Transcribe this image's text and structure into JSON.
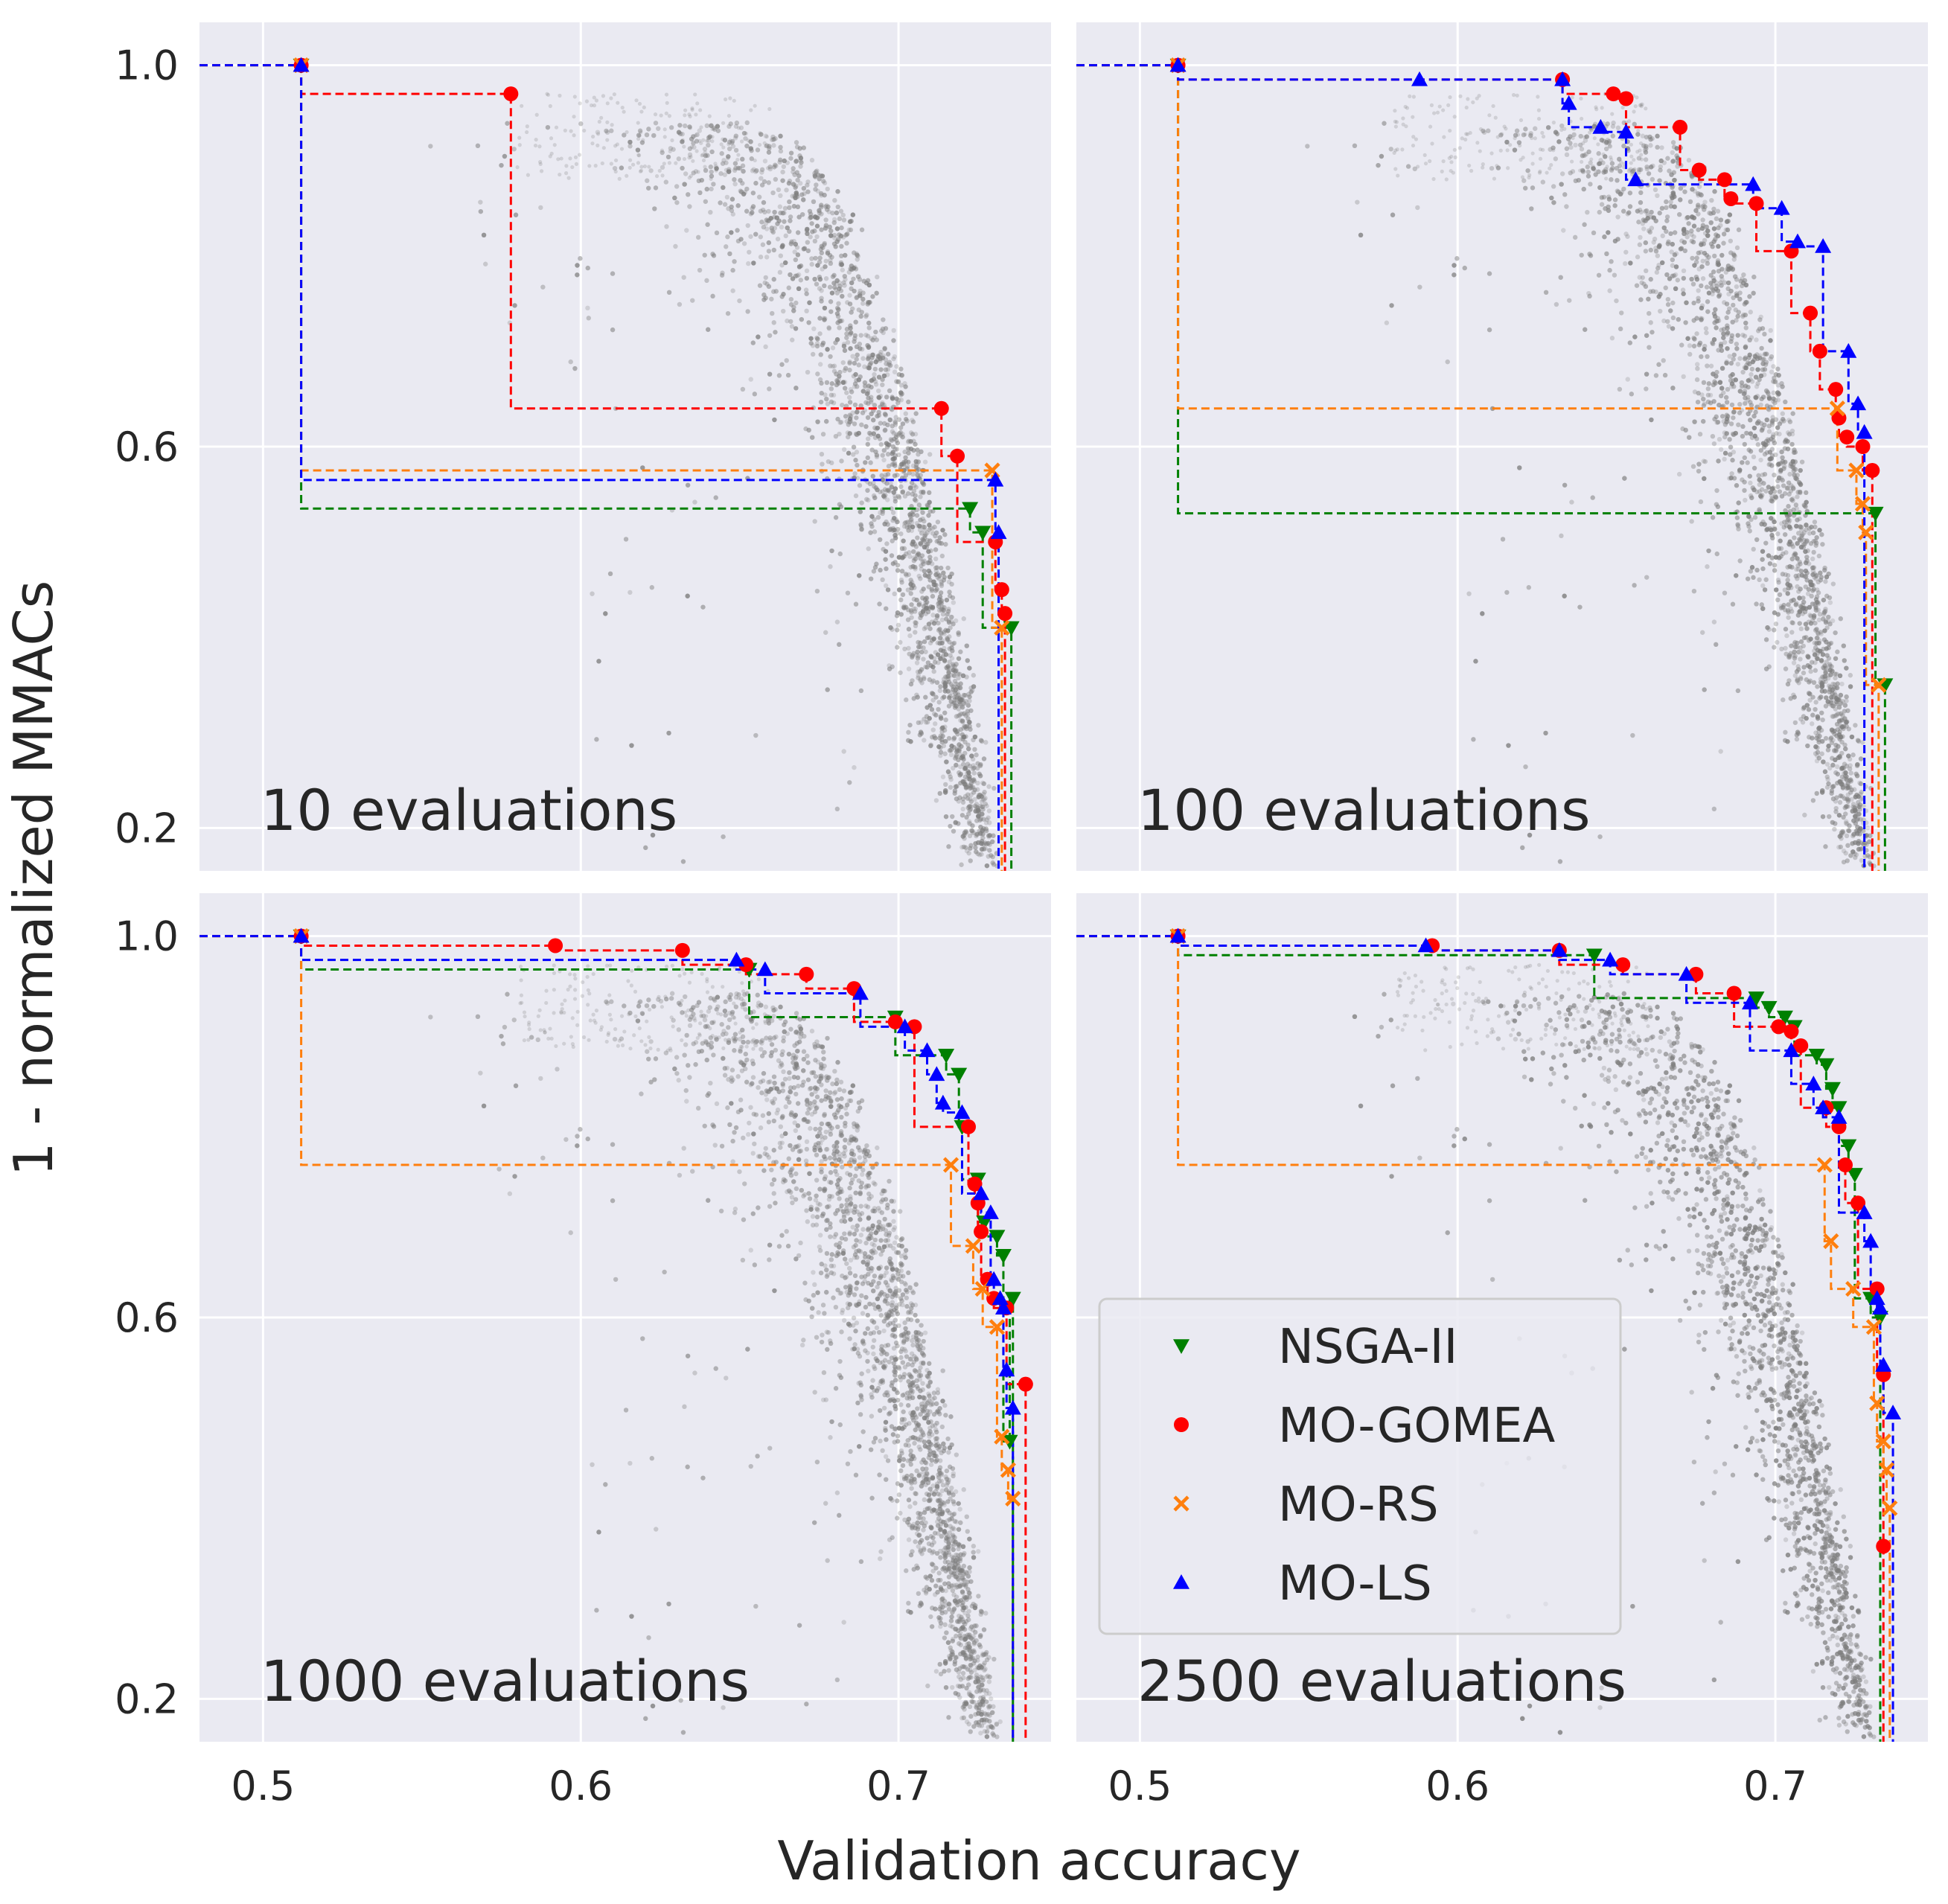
{
  "chart_data": {
    "type": "scatter",
    "layout": "2x2 small multiples, shared axes",
    "xlabel": "Validation accuracy",
    "ylabel": "1 - normalized MMACs",
    "xlim": [
      0.48,
      0.748
    ],
    "ylim": [
      0.155,
      1.045
    ],
    "xticks": [
      0.5,
      0.6,
      0.7
    ],
    "yticks": [
      0.2,
      0.6,
      1.0
    ],
    "xtick_labels": [
      "0.5",
      "0.6",
      "0.7"
    ],
    "ytick_labels": [
      "0.2",
      "0.6",
      "1.0"
    ],
    "grid": true,
    "background": "#eaeaf2",
    "legend": {
      "placement": "bottom-right panel, lower-left",
      "entries": [
        {
          "label": "NSGA-II",
          "color": "#008000",
          "marker": "triangle-down"
        },
        {
          "label": "MO-GOMEA",
          "color": "#ff0000",
          "marker": "circle"
        },
        {
          "label": "MO-RS",
          "color": "#ff7f0e",
          "marker": "x"
        },
        {
          "label": "MO-LS",
          "color": "#0000ff",
          "marker": "triangle-up"
        }
      ]
    },
    "panels": [
      {
        "title": "10 evaluations",
        "series": [
          {
            "name": "NSGA-II",
            "color": "#008000",
            "marker": "triangle-down",
            "points": [
              [
                0.512,
                1.0
              ],
              [
                0.7225,
                0.535
              ],
              [
                0.7265,
                0.51
              ],
              [
                0.7355,
                0.41
              ]
            ]
          },
          {
            "name": "MO-GOMEA",
            "color": "#ff0000",
            "marker": "circle",
            "points": [
              [
                0.512,
                1.0
              ],
              [
                0.578,
                0.97
              ],
              [
                0.7135,
                0.64
              ],
              [
                0.7185,
                0.59
              ],
              [
                0.7305,
                0.5
              ],
              [
                0.7325,
                0.45
              ],
              [
                0.7335,
                0.425
              ]
            ]
          },
          {
            "name": "MO-RS",
            "color": "#ff7f0e",
            "marker": "x",
            "points": [
              [
                0.512,
                1.0
              ],
              [
                0.7295,
                0.575
              ],
              [
                0.7325,
                0.41
              ]
            ]
          },
          {
            "name": "MO-LS",
            "color": "#0000ff",
            "marker": "triangle-up",
            "points": [
              [
                0.512,
                1.0
              ],
              [
                0.7305,
                0.565
              ],
              [
                0.7315,
                0.51
              ]
            ]
          }
        ]
      },
      {
        "title": "100 evaluations",
        "series": [
          {
            "name": "NSGA-II",
            "color": "#008000",
            "marker": "triangle-down",
            "points": [
              [
                0.512,
                1.0
              ],
              [
                0.7315,
                0.53
              ],
              [
                0.7345,
                0.35
              ]
            ]
          },
          {
            "name": "MO-GOMEA",
            "color": "#ff0000",
            "marker": "circle",
            "points": [
              [
                0.512,
                1.0
              ],
              [
                0.633,
                0.985
              ],
              [
                0.649,
                0.97
              ],
              [
                0.653,
                0.965
              ],
              [
                0.67,
                0.935
              ],
              [
                0.676,
                0.89
              ],
              [
                0.684,
                0.88
              ],
              [
                0.686,
                0.86
              ],
              [
                0.694,
                0.855
              ],
              [
                0.705,
                0.805
              ],
              [
                0.711,
                0.74
              ],
              [
                0.714,
                0.7
              ],
              [
                0.719,
                0.66
              ],
              [
                0.72,
                0.63
              ],
              [
                0.7225,
                0.61
              ],
              [
                0.7275,
                0.6
              ],
              [
                0.7305,
                0.575
              ]
            ]
          },
          {
            "name": "MO-RS",
            "color": "#ff7f0e",
            "marker": "x",
            "points": [
              [
                0.512,
                1.0
              ],
              [
                0.7195,
                0.64
              ],
              [
                0.7255,
                0.575
              ],
              [
                0.7275,
                0.54
              ],
              [
                0.7285,
                0.51
              ],
              [
                0.7325,
                0.35
              ]
            ]
          },
          {
            "name": "MO-LS",
            "color": "#0000ff",
            "marker": "triangle-up",
            "points": [
              [
                0.512,
                1.0
              ],
              [
                0.588,
                0.985
              ],
              [
                0.633,
                0.985
              ],
              [
                0.635,
                0.96
              ],
              [
                0.645,
                0.935
              ],
              [
                0.653,
                0.93
              ],
              [
                0.656,
                0.88
              ],
              [
                0.693,
                0.875
              ],
              [
                0.702,
                0.85
              ],
              [
                0.707,
                0.815
              ],
              [
                0.715,
                0.81
              ],
              [
                0.723,
                0.7
              ],
              [
                0.726,
                0.645
              ],
              [
                0.728,
                0.615
              ]
            ]
          }
        ]
      },
      {
        "title": "1000 evaluations",
        "series": [
          {
            "name": "NSGA-II",
            "color": "#008000",
            "marker": "triangle-down",
            "points": [
              [
                0.512,
                1.0
              ],
              [
                0.653,
                0.965
              ],
              [
                0.699,
                0.915
              ],
              [
                0.715,
                0.875
              ],
              [
                0.719,
                0.855
              ],
              [
                0.72,
                0.8
              ],
              [
                0.725,
                0.745
              ],
              [
                0.727,
                0.7
              ],
              [
                0.731,
                0.685
              ],
              [
                0.733,
                0.665
              ],
              [
                0.736,
                0.62
              ],
              [
                0.735,
                0.47
              ]
            ]
          },
          {
            "name": "MO-GOMEA",
            "color": "#ff0000",
            "marker": "circle",
            "points": [
              [
                0.512,
                1.0
              ],
              [
                0.592,
                0.99
              ],
              [
                0.632,
                0.985
              ],
              [
                0.652,
                0.97
              ],
              [
                0.671,
                0.96
              ],
              [
                0.686,
                0.945
              ],
              [
                0.699,
                0.91
              ],
              [
                0.705,
                0.905
              ],
              [
                0.722,
                0.8
              ],
              [
                0.724,
                0.74
              ],
              [
                0.725,
                0.72
              ],
              [
                0.726,
                0.69
              ],
              [
                0.728,
                0.64
              ],
              [
                0.73,
                0.62
              ],
              [
                0.734,
                0.61
              ],
              [
                0.74,
                0.53
              ]
            ]
          },
          {
            "name": "MO-RS",
            "color": "#ff7f0e",
            "marker": "x",
            "points": [
              [
                0.512,
                1.0
              ],
              [
                0.7165,
                0.76
              ],
              [
                0.7235,
                0.675
              ],
              [
                0.7265,
                0.63
              ],
              [
                0.731,
                0.59
              ],
              [
                0.7325,
                0.475
              ],
              [
                0.7345,
                0.44
              ],
              [
                0.736,
                0.41
              ]
            ]
          },
          {
            "name": "MO-LS",
            "color": "#0000ff",
            "marker": "triangle-up",
            "points": [
              [
                0.512,
                1.0
              ],
              [
                0.649,
                0.975
              ],
              [
                0.658,
                0.965
              ],
              [
                0.688,
                0.94
              ],
              [
                0.702,
                0.905
              ],
              [
                0.709,
                0.88
              ],
              [
                0.712,
                0.855
              ],
              [
                0.714,
                0.825
              ],
              [
                0.72,
                0.815
              ],
              [
                0.726,
                0.73
              ],
              [
                0.729,
                0.71
              ],
              [
                0.73,
                0.64
              ],
              [
                0.732,
                0.62
              ],
              [
                0.733,
                0.61
              ],
              [
                0.734,
                0.545
              ],
              [
                0.736,
                0.505
              ]
            ]
          }
        ]
      },
      {
        "title": "2500 evaluations",
        "series": [
          {
            "name": "NSGA-II",
            "color": "#008000",
            "marker": "triangle-down",
            "points": [
              [
                0.512,
                1.0
              ],
              [
                0.643,
                0.98
              ],
              [
                0.694,
                0.935
              ],
              [
                0.698,
                0.925
              ],
              [
                0.703,
                0.915
              ],
              [
                0.706,
                0.905
              ],
              [
                0.713,
                0.875
              ],
              [
                0.716,
                0.865
              ],
              [
                0.718,
                0.84
              ],
              [
                0.72,
                0.82
              ],
              [
                0.723,
                0.78
              ],
              [
                0.725,
                0.75
              ],
              [
                0.73,
                0.62
              ],
              [
                0.733,
                0.6
              ]
            ]
          },
          {
            "name": "MO-GOMEA",
            "color": "#ff0000",
            "marker": "circle",
            "points": [
              [
                0.512,
                1.0
              ],
              [
                0.592,
                0.99
              ],
              [
                0.632,
                0.985
              ],
              [
                0.652,
                0.97
              ],
              [
                0.675,
                0.96
              ],
              [
                0.687,
                0.94
              ],
              [
                0.701,
                0.905
              ],
              [
                0.705,
                0.9
              ],
              [
                0.708,
                0.885
              ],
              [
                0.716,
                0.82
              ],
              [
                0.72,
                0.8
              ],
              [
                0.722,
                0.76
              ],
              [
                0.726,
                0.72
              ],
              [
                0.732,
                0.63
              ],
              [
                0.734,
                0.54
              ],
              [
                0.734,
                0.36
              ]
            ]
          },
          {
            "name": "MO-RS",
            "color": "#ff7f0e",
            "marker": "x",
            "points": [
              [
                0.512,
                1.0
              ],
              [
                0.7155,
                0.76
              ],
              [
                0.7175,
                0.68
              ],
              [
                0.7245,
                0.63
              ],
              [
                0.731,
                0.59
              ],
              [
                0.732,
                0.51
              ],
              [
                0.734,
                0.47
              ],
              [
                0.735,
                0.44
              ],
              [
                0.736,
                0.4
              ]
            ]
          },
          {
            "name": "MO-LS",
            "color": "#0000ff",
            "marker": "triangle-up",
            "points": [
              [
                0.512,
                1.0
              ],
              [
                0.59,
                0.99
              ],
              [
                0.632,
                0.985
              ],
              [
                0.648,
                0.975
              ],
              [
                0.672,
                0.96
              ],
              [
                0.692,
                0.93
              ],
              [
                0.705,
                0.88
              ],
              [
                0.712,
                0.845
              ],
              [
                0.715,
                0.82
              ],
              [
                0.72,
                0.81
              ],
              [
                0.728,
                0.71
              ],
              [
                0.73,
                0.68
              ],
              [
                0.732,
                0.62
              ],
              [
                0.733,
                0.61
              ],
              [
                0.734,
                0.55
              ],
              [
                0.737,
                0.5
              ]
            ]
          }
        ]
      }
    ]
  }
}
